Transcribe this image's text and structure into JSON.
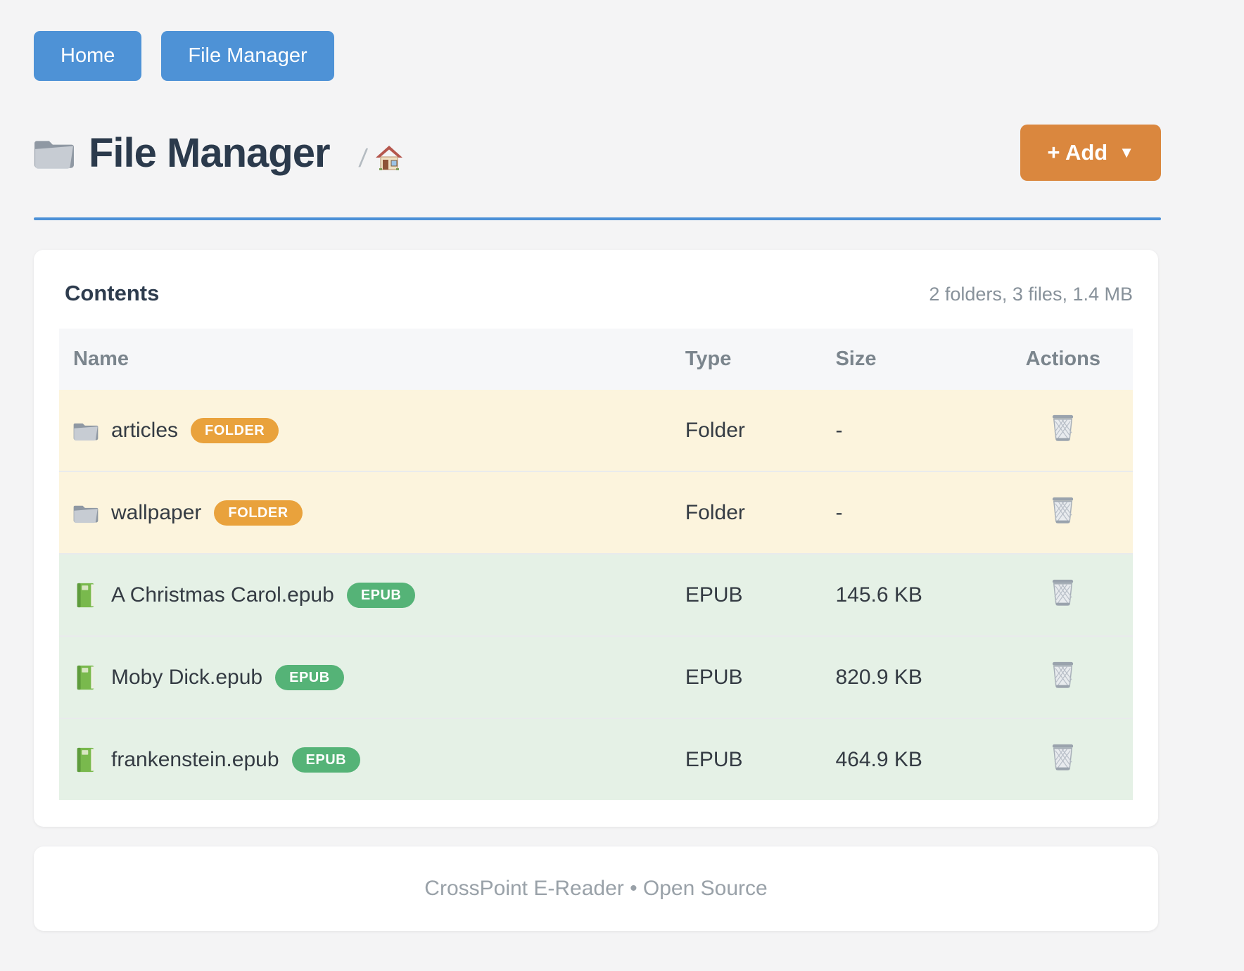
{
  "nav": {
    "home_label": "Home",
    "file_manager_label": "File Manager"
  },
  "header": {
    "title": "File Manager",
    "breadcrumb_separator": "/",
    "add_label": "+ Add",
    "add_caret": "▼"
  },
  "contents": {
    "title": "Contents",
    "summary": "2 folders, 3 files, 1.4 MB",
    "columns": [
      "Name",
      "Type",
      "Size",
      "Actions"
    ],
    "rows": [
      {
        "name": "articles",
        "kind": "folder",
        "badge": "FOLDER",
        "type": "Folder",
        "size": "-"
      },
      {
        "name": "wallpaper",
        "kind": "folder",
        "badge": "FOLDER",
        "type": "Folder",
        "size": "-"
      },
      {
        "name": "A Christmas Carol.epub",
        "kind": "epub",
        "badge": "EPUB",
        "type": "EPUB",
        "size": "145.6 KB"
      },
      {
        "name": "Moby Dick.epub",
        "kind": "epub",
        "badge": "EPUB",
        "type": "EPUB",
        "size": "820.9 KB"
      },
      {
        "name": "frankenstein.epub",
        "kind": "epub",
        "badge": "EPUB",
        "type": "EPUB",
        "size": "464.9 KB"
      }
    ]
  },
  "footer": {
    "text": "CrossPoint E-Reader • Open Source"
  },
  "icons": {
    "title": "folder-icon",
    "breadcrumb": "home-icon",
    "folder_row": "folder-icon",
    "epub_row": "green-book-icon",
    "actions": "trash-icon"
  },
  "colors": {
    "nav_button_blue": "#4e92d6",
    "divider_blue": "#4b90d7",
    "add_button_orange": "#da873e",
    "badge_orange": "#e9a23c",
    "badge_green": "#55b377",
    "folder_row_bg": "#fcf4dd",
    "epub_row_bg": "#e5f1e6",
    "heading_text": "#2b3a4c",
    "muted_text": "#87919a"
  }
}
